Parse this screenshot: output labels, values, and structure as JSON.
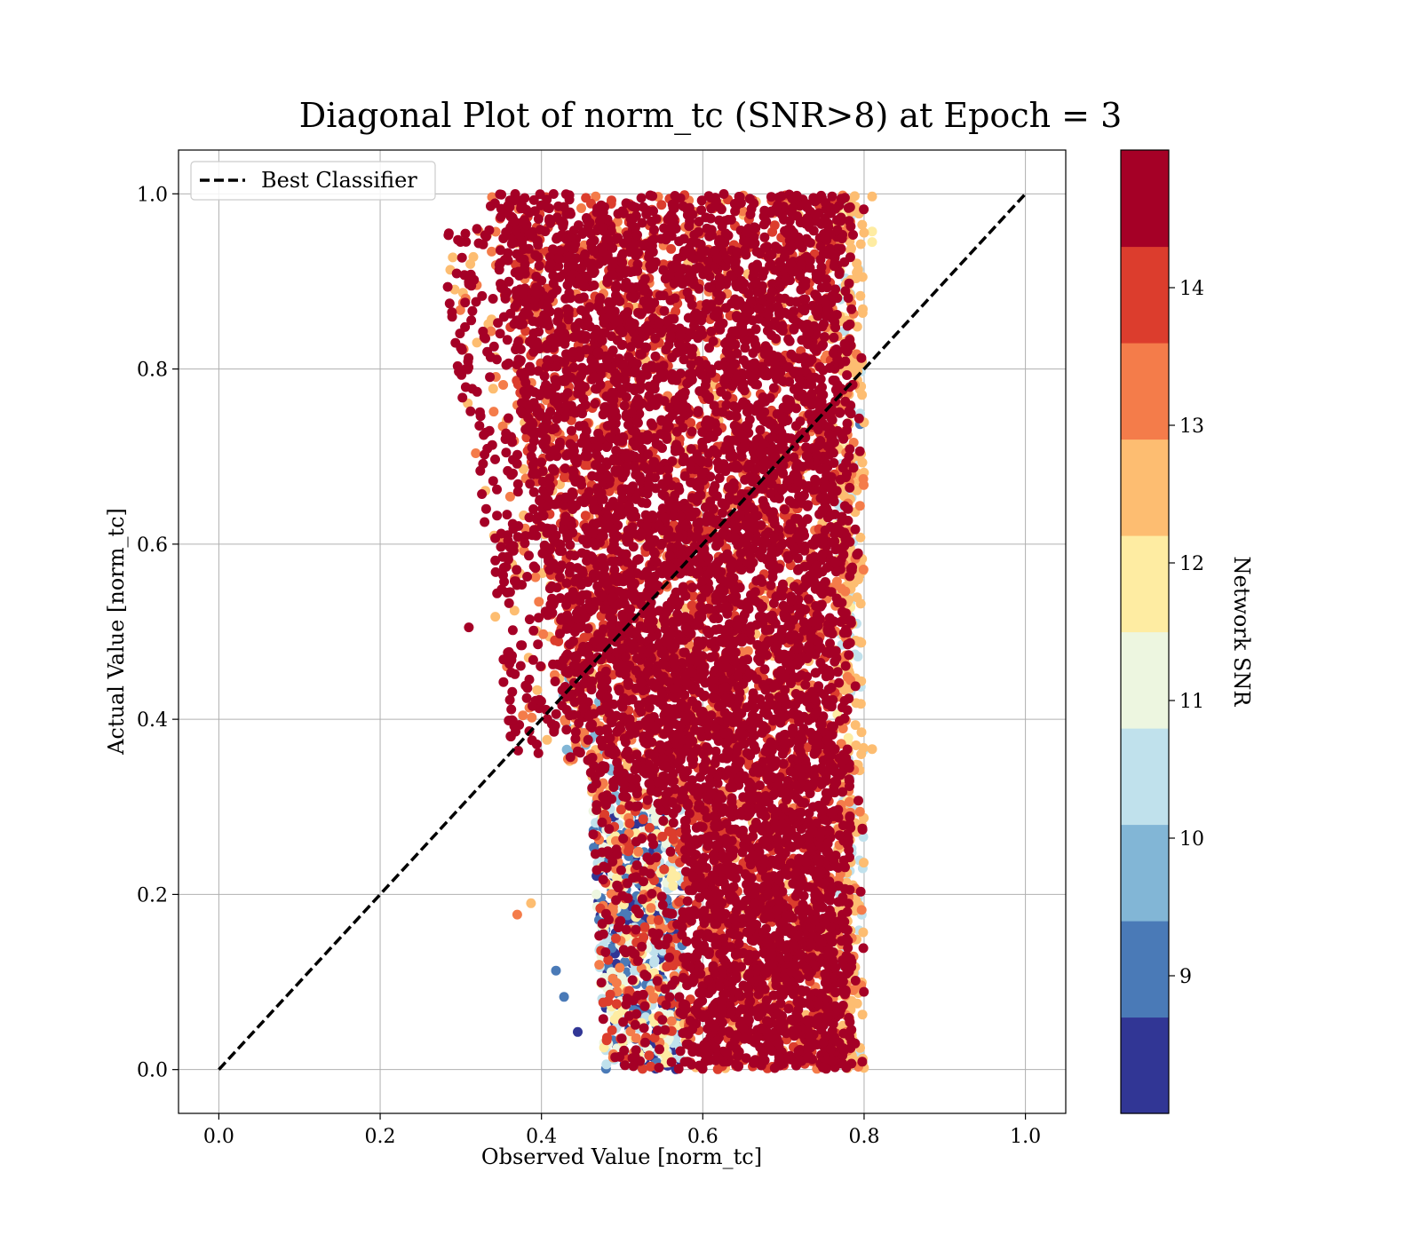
{
  "chart_data": {
    "type": "scatter",
    "title": "Diagonal Plot of norm_tc (SNR>8) at Epoch = 3",
    "xlabel": "Observed Value [norm_tc]",
    "ylabel": "Actual Value [norm_tc]",
    "xlim": [
      -0.05,
      1.05
    ],
    "ylim": [
      -0.05,
      1.05
    ],
    "xticks": [
      0.0,
      0.2,
      0.4,
      0.6,
      0.8,
      1.0
    ],
    "xtick_labels": [
      "0.0",
      "0.2",
      "0.4",
      "0.6",
      "0.8",
      "1.0"
    ],
    "yticks": [
      0.0,
      0.2,
      0.4,
      0.6,
      0.8,
      1.0
    ],
    "ytick_labels": [
      "0.0",
      "0.2",
      "0.4",
      "0.6",
      "0.8",
      "1.0"
    ],
    "grid": true,
    "legend": {
      "placement": "upper-left",
      "entries": [
        {
          "label": "Best Classifier",
          "style": "dashed",
          "color": "#000000"
        }
      ]
    },
    "reference_line": {
      "label": "Best Classifier",
      "x": [
        0.0,
        1.0
      ],
      "y": [
        0.0,
        1.0
      ],
      "style": "dashed",
      "color": "#000000"
    },
    "colorbar": {
      "label": "Network SNR",
      "range": [
        8.0,
        15.0
      ],
      "ticks": [
        9,
        10,
        11,
        12,
        13,
        14
      ],
      "tick_labels": [
        "9",
        "10",
        "11",
        "12",
        "13",
        "14"
      ],
      "colors": [
        "#313695",
        "#4575b4",
        "#74add1",
        "#abd9e9",
        "#e0f3f8",
        "#fee090",
        "#fdae61",
        "#f46d43",
        "#d73027",
        "#a50026"
      ],
      "segment_colors_rendered": [
        "#313695",
        "#4a7ab7",
        "#82b6d6",
        "#c0e1ec",
        "#edf6e0",
        "#feeca2",
        "#fdbd71",
        "#f47c4a",
        "#dc3d2d",
        "#a50026"
      ]
    },
    "point_clusters": [
      {
        "region": "main body",
        "x_range": [
          0.4,
          0.78
        ],
        "y_range": [
          0.0,
          1.0
        ],
        "dominant_snr": "14+",
        "dominant_color": "#a50026"
      },
      {
        "region": "lower-left low-SNR pocket",
        "x_range": [
          0.45,
          0.58
        ],
        "y_range": [
          0.0,
          0.3
        ],
        "snr_range": [
          8,
          12
        ],
        "colors": [
          "#313695",
          "#4575b4",
          "#abd9e9",
          "#fee090"
        ]
      },
      {
        "region": "right edge fringe",
        "x_range": [
          0.76,
          0.81
        ],
        "y_range": [
          0.0,
          1.0
        ],
        "snr_range": [
          10,
          13
        ],
        "colors": [
          "#fdae61",
          "#fee090",
          "#abd9e9"
        ]
      },
      {
        "region": "upper-left scatter",
        "x_range": [
          0.31,
          0.45
        ],
        "y_range": [
          0.35,
          0.98
        ],
        "dominant_snr": "14+",
        "dominant_color": "#a50026"
      }
    ],
    "outlier_points": [
      {
        "x": 0.31,
        "y": 0.505,
        "snr": 14.8
      },
      {
        "x": 0.32,
        "y": 0.96,
        "snr": 14.8
      },
      {
        "x": 0.35,
        "y": 0.983,
        "snr": 14.8
      },
      {
        "x": 0.37,
        "y": 0.177,
        "snr": 13.3
      },
      {
        "x": 0.387,
        "y": 0.19,
        "snr": 12.5
      },
      {
        "x": 0.418,
        "y": 0.113,
        "snr": 9.0
      },
      {
        "x": 0.428,
        "y": 0.083,
        "snr": 9.3
      },
      {
        "x": 0.445,
        "y": 0.043,
        "snr": 8.5
      },
      {
        "x": 0.81,
        "y": 0.366,
        "snr": 12.6
      },
      {
        "x": 0.81,
        "y": 0.997,
        "snr": 12.6
      },
      {
        "x": 0.81,
        "y": 0.957,
        "snr": 12.2
      },
      {
        "x": 0.81,
        "y": 0.945,
        "snr": 12.0
      },
      {
        "x": 0.795,
        "y": 0.737,
        "snr": 9.3
      },
      {
        "x": 0.35,
        "y": 0.612,
        "snr": 14.8
      }
    ]
  }
}
